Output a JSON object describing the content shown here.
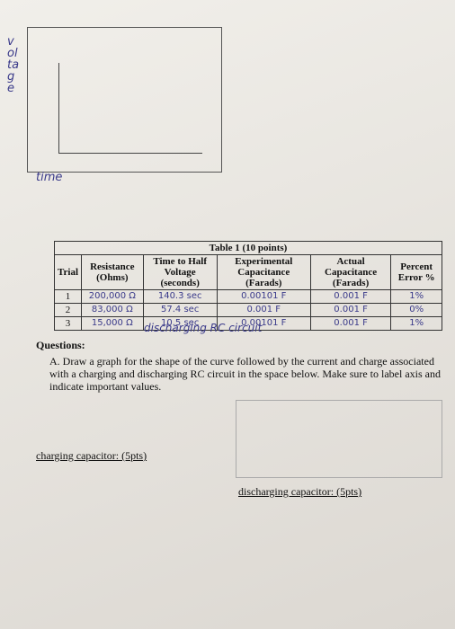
{
  "graph": {
    "y_label": "voltage",
    "x_label": "time"
  },
  "table": {
    "title": "Table 1 (10 points)",
    "headers": [
      "Trial",
      "Resistance (Ohms)",
      "Time to Half Voltage (seconds)",
      "Experimental Capacitance (Farads)",
      "Actual Capacitance (Farads)",
      "Percent Error %"
    ],
    "rows": [
      [
        "1",
        "200,000 Ω",
        "140.3 sec",
        "0.00101 F",
        "0.001 F",
        "1%"
      ],
      [
        "2",
        "83,000 Ω",
        "57.4 sec",
        "0.001 F",
        "0.001 F",
        "0%"
      ],
      [
        "3",
        "15,000 Ω",
        "10.5 sec",
        "0.00101 F",
        "0.001 F",
        "1%"
      ]
    ]
  },
  "annotation": "discharging RC circuit",
  "questions": {
    "heading": "Questions:",
    "a": "A. Draw a graph for the shape of the curve followed by the current and charge associated with a charging and discharging RC circuit in the space below. Make sure to label axis and indicate important values.",
    "charging": "charging capacitor: (5pts)",
    "discharging": "discharging capacitor: (5pts)"
  }
}
